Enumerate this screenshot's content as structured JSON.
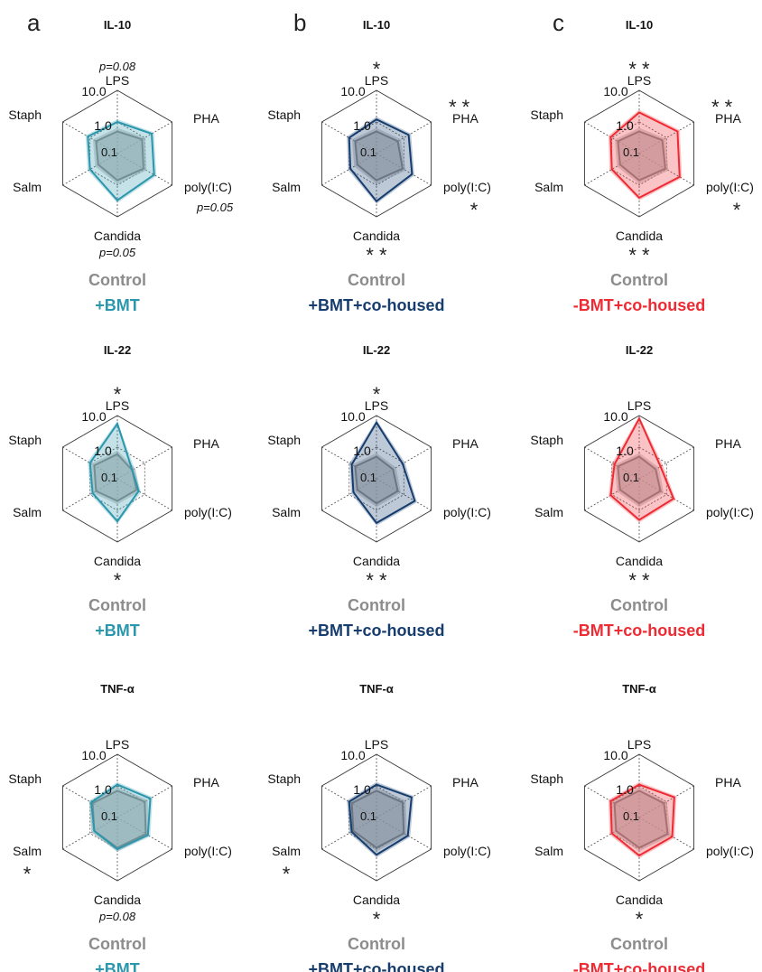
{
  "panel_letters": [
    "a",
    "b",
    "c"
  ],
  "control_label": "Control",
  "colors": {
    "control": "#8c8c8c",
    "control_fill": "#b9b9b9",
    "bmt": "#2a97ad",
    "bmt_cohoused": "#163d6e",
    "nobmt_cohoused": "#ee2a33",
    "axis": "#333333",
    "star": "#222222"
  },
  "chart_data": [
    {
      "type": "radar",
      "scale": "log",
      "range": [
        0.1,
        10
      ],
      "ring_labels": [
        "10.0",
        "1.0",
        "0.1"
      ],
      "title": "IL-10",
      "axes": [
        "LPS",
        "PHA",
        "poly(I:C)",
        "Candida",
        "Salm",
        "Staph"
      ],
      "annotations": {
        "LPS": "p=0.08",
        "PHA": "",
        "poly(I:C)": "p=0.05",
        "Candida": "p=0.05",
        "Salm": "",
        "Staph": ""
      },
      "series": [
        {
          "name": "Control",
          "values": [
            0.5,
            0.8,
            0.9,
            0.7,
            0.5,
            0.6
          ]
        },
        {
          "name": "+BMT",
          "values": [
            1.0,
            1.8,
            2.2,
            3.0,
            1.0,
            1.2
          ]
        }
      ]
    },
    {
      "type": "radar",
      "scale": "log",
      "range": [
        0.1,
        10
      ],
      "ring_labels": [
        "10.0",
        "1.0",
        "0.1"
      ],
      "title": "IL-10",
      "axes": [
        "LPS",
        "PHA",
        "poly(I:C)",
        "Candida",
        "Salm",
        "Staph"
      ],
      "annotations": {
        "LPS": "*",
        "PHA": "**",
        "poly(I:C)": "*",
        "Candida": "**",
        "Salm": "",
        "Staph": ""
      },
      "series": [
        {
          "name": "Control",
          "values": [
            0.5,
            0.6,
            0.9,
            0.7,
            0.5,
            0.6
          ]
        },
        {
          "name": "+BMT+co-housed",
          "values": [
            1.2,
            1.5,
            2.0,
            3.2,
            0.9,
            1.0
          ]
        }
      ]
    },
    {
      "type": "radar",
      "scale": "log",
      "range": [
        0.1,
        10
      ],
      "ring_labels": [
        "10.0",
        "1.0",
        "0.1"
      ],
      "title": "IL-10",
      "axes": [
        "LPS",
        "PHA",
        "poly(I:C)",
        "Candida",
        "Salm",
        "Staph"
      ],
      "annotations": {
        "LPS": "**",
        "PHA": "**",
        "poly(I:C)": "*",
        "Candida": "**",
        "Salm": "",
        "Staph": ""
      },
      "series": [
        {
          "name": "Control",
          "values": [
            0.5,
            0.7,
            0.9,
            0.7,
            0.5,
            0.6
          ]
        },
        {
          "name": "-BMT+co-housed",
          "values": [
            2.0,
            2.5,
            3.0,
            2.5,
            1.0,
            1.1
          ]
        }
      ]
    },
    {
      "type": "radar",
      "scale": "log",
      "range": [
        0.1,
        10
      ],
      "ring_labels": [
        "10.0",
        "1.0",
        "0.1"
      ],
      "title": "IL-22",
      "axes": [
        "LPS",
        "PHA",
        "poly(I:C)",
        "Candida",
        "Salm",
        "Staph"
      ],
      "annotations": {
        "LPS": "*",
        "PHA": "",
        "poly(I:C)": "",
        "Candida": "*",
        "Salm": "",
        "Staph": ""
      },
      "series": [
        {
          "name": "Control",
          "values": [
            0.6,
            0.35,
            0.5,
            0.5,
            0.6,
            0.7
          ]
        },
        {
          "name": "+BMT",
          "values": [
            5.5,
            0.35,
            0.6,
            2.2,
            0.8,
            1.0
          ]
        }
      ]
    },
    {
      "type": "radar",
      "scale": "log",
      "range": [
        0.1,
        10
      ],
      "ring_labels": [
        "10.0",
        "1.0",
        "0.1"
      ],
      "title": "IL-22",
      "axes": [
        "LPS",
        "PHA",
        "poly(I:C)",
        "Candida",
        "Salm",
        "Staph"
      ],
      "annotations": {
        "LPS": "*",
        "PHA": "",
        "poly(I:C)": "",
        "Candida": "**",
        "Salm": "",
        "Staph": ""
      },
      "series": [
        {
          "name": "Control",
          "values": [
            0.5,
            0.4,
            0.6,
            0.6,
            0.5,
            0.6
          ]
        },
        {
          "name": "+BMT+co-housed",
          "values": [
            6.0,
            0.9,
            2.5,
            2.5,
            0.7,
            0.8
          ]
        }
      ]
    },
    {
      "type": "radar",
      "scale": "log",
      "range": [
        0.1,
        10
      ],
      "ring_labels": [
        "10.0",
        "1.0",
        "0.1"
      ],
      "title": "IL-22",
      "axes": [
        "LPS",
        "PHA",
        "poly(I:C)",
        "Candida",
        "Salm",
        "Staph"
      ],
      "annotations": {
        "LPS": "",
        "PHA": "",
        "poly(I:C)": "",
        "Candida": "**",
        "Salm": "",
        "Staph": ""
      },
      "series": [
        {
          "name": "Control",
          "values": [
            0.5,
            0.4,
            0.6,
            0.6,
            0.5,
            0.6
          ]
        },
        {
          "name": "-BMT+co-housed",
          "values": [
            8.0,
            0.6,
            1.8,
            2.0,
            1.1,
            0.8
          ]
        }
      ]
    },
    {
      "type": "radar",
      "scale": "log",
      "range": [
        0.1,
        10
      ],
      "ring_labels": [
        "10.0",
        "1.0",
        "0.1"
      ],
      "title": "TNF-α",
      "axes": [
        "LPS",
        "PHA",
        "poly(I:C)",
        "Candida",
        "Salm",
        "Staph"
      ],
      "annotations": {
        "LPS": "",
        "PHA": "",
        "poly(I:C)": "",
        "Candida": "p=0.08",
        "Salm": "*",
        "Staph": ""
      },
      "series": [
        {
          "name": "Control",
          "values": [
            0.7,
            1.0,
            1.1,
            0.9,
            0.7,
            0.8
          ]
        },
        {
          "name": "+BMT",
          "values": [
            1.1,
            1.6,
            1.3,
            1.0,
            0.7,
            0.9
          ]
        }
      ]
    },
    {
      "type": "radar",
      "scale": "log",
      "range": [
        0.1,
        10
      ],
      "ring_labels": [
        "10.0",
        "1.0",
        "0.1"
      ],
      "title": "TNF-α",
      "axes": [
        "LPS",
        "PHA",
        "poly(I:C)",
        "Candida",
        "Salm",
        "Staph"
      ],
      "annotations": {
        "LPS": "",
        "PHA": "",
        "poly(I:C)": "",
        "Candida": "*",
        "Salm": "*",
        "Staph": ""
      },
      "series": [
        {
          "name": "Control",
          "values": [
            0.7,
            0.9,
            1.0,
            0.9,
            0.7,
            0.8
          ]
        },
        {
          "name": "+BMT+co-housed",
          "values": [
            1.1,
            1.9,
            1.4,
            1.5,
            0.8,
            1.0
          ]
        }
      ]
    },
    {
      "type": "radar",
      "scale": "log",
      "range": [
        0.1,
        10
      ],
      "ring_labels": [
        "10.0",
        "1.0",
        "0.1"
      ],
      "title": "TNF-α",
      "axes": [
        "LPS",
        "PHA",
        "poly(I:C)",
        "Candida",
        "Salm",
        "Staph"
      ],
      "annotations": {
        "LPS": "",
        "PHA": "",
        "poly(I:C)": "",
        "Candida": "*",
        "Salm": "",
        "Staph": ""
      },
      "series": [
        {
          "name": "Control",
          "values": [
            0.7,
            0.8,
            1.1,
            0.9,
            0.7,
            0.8
          ]
        },
        {
          "name": "-BMT+co-housed",
          "values": [
            1.1,
            1.9,
            1.6,
            1.6,
            1.0,
            1.1
          ]
        }
      ]
    }
  ]
}
